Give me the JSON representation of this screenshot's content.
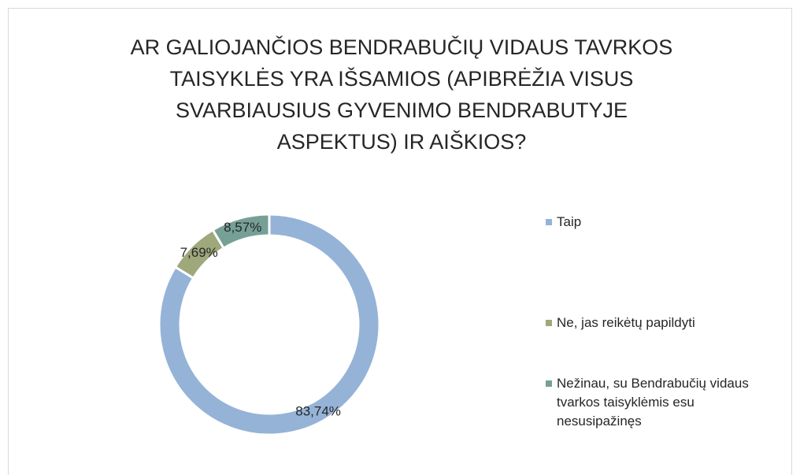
{
  "chart_data": {
    "type": "donut",
    "title": "AR GALIOJANČIOS BENDRABUČIŲ VIDAUS TAVRKOS TAISYKLĖS YRA IŠSAMIOS (APIBRĖŽIA VISUS SVARBIAUSIUS GYVENIMO BENDRABUTYJE ASPEKTUS) IR AIŠKIOS?",
    "categories": [
      "Taip",
      "Ne, jas reikėtų papildyti",
      "Nežinau, su Bendrabučių vidaus tvarkos taisyklėmis esu nesusipažinęs"
    ],
    "values": [
      83.74,
      7.69,
      8.57
    ],
    "value_labels": [
      "83,74%",
      "7,69%",
      "8,57%"
    ],
    "colors": [
      "#95b3d7",
      "#9ea87b",
      "#76a096"
    ],
    "legend": "right"
  }
}
